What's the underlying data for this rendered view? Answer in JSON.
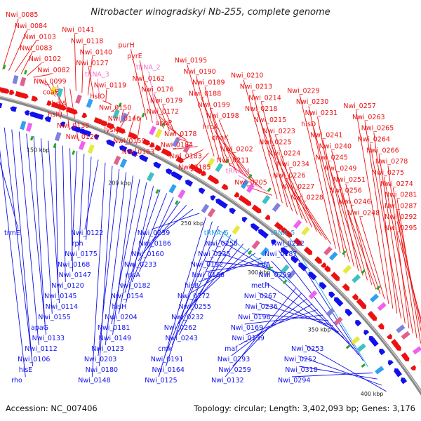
{
  "title": "Nitrobacter winogradskyi Nb-255, complete genome",
  "footer": {
    "accession": "Accession: NC_007406",
    "topology": "Topology: circular; Length: 3,402,093 bp; Genes: 3,176"
  },
  "colors": {
    "forward": "#ee1111",
    "reverse": "#1111ee",
    "trna_forward": "#ee77cc",
    "trna_reverse": "#22aadd",
    "backbone": "#888888"
  },
  "scale_ticks": [
    "150 kbp",
    "200 kbp",
    "250 kbp",
    "300 kbp",
    "350 kbp",
    "400 kbp"
  ],
  "forward_labels": [
    {
      "text": "Nwi_0085",
      "kind": "gene"
    },
    {
      "text": "Nwi_0084",
      "kind": "gene"
    },
    {
      "text": "Nwi_0103",
      "kind": "gene"
    },
    {
      "text": "Nwi_0083",
      "kind": "gene"
    },
    {
      "text": "Nwi_0102",
      "kind": "gene"
    },
    {
      "text": "Nwi_0082",
      "kind": "gene"
    },
    {
      "text": "Nwi_0099",
      "kind": "gene"
    },
    {
      "text": "coaE",
      "kind": "gene"
    },
    {
      "text": "holA",
      "kind": "gene"
    },
    {
      "text": "hslU",
      "kind": "gene"
    },
    {
      "text": "Nwi_0138",
      "kind": "gene"
    },
    {
      "text": "Nwi_0128",
      "kind": "gene"
    },
    {
      "text": "Nwi_0141",
      "kind": "gene"
    },
    {
      "text": "Nwi_0118",
      "kind": "gene"
    },
    {
      "text": "Nwi_0140",
      "kind": "gene"
    },
    {
      "text": "Nwi_0127",
      "kind": "gene"
    },
    {
      "text": "tRNA_3",
      "kind": "trna"
    },
    {
      "text": "Nwi_0119",
      "kind": "gene"
    },
    {
      "text": "hslO",
      "kind": "gene"
    },
    {
      "text": "Nwi_0150",
      "kind": "gene"
    },
    {
      "text": "Nwi_0146",
      "kind": "gene"
    },
    {
      "text": "lysK",
      "kind": "gene"
    },
    {
      "text": "Nwi_0159",
      "kind": "gene"
    },
    {
      "text": "Nwi_0163",
      "kind": "gene"
    },
    {
      "text": "purH",
      "kind": "gene"
    },
    {
      "text": "pyrE",
      "kind": "gene"
    },
    {
      "text": "tRNA_2",
      "kind": "trna"
    },
    {
      "text": "Nwi_0162",
      "kind": "gene"
    },
    {
      "text": "Nwi_0176",
      "kind": "gene"
    },
    {
      "text": "Nwi_0179",
      "kind": "gene"
    },
    {
      "text": "Nwi_0172",
      "kind": "gene"
    },
    {
      "text": "uppP",
      "kind": "gene"
    },
    {
      "text": "Nwi_0178",
      "kind": "gene"
    },
    {
      "text": "Nwi_0184",
      "kind": "gene"
    },
    {
      "text": "Nwi_0183",
      "kind": "gene"
    },
    {
      "text": "Nwi_0185",
      "kind": "gene"
    },
    {
      "text": "Nwi_0195",
      "kind": "gene"
    },
    {
      "text": "Nwi_0190",
      "kind": "gene"
    },
    {
      "text": "Nwi_0189",
      "kind": "gene"
    },
    {
      "text": "Nwi_0188",
      "kind": "gene"
    },
    {
      "text": "Nwi_0199",
      "kind": "gene"
    },
    {
      "text": "Nwi_0198",
      "kind": "gene"
    },
    {
      "text": "hrcA",
      "kind": "gene"
    },
    {
      "text": "dnaK",
      "kind": "gene"
    },
    {
      "text": "Nwi_0202",
      "kind": "gene"
    },
    {
      "text": "Nwi_0211",
      "kind": "gene"
    },
    {
      "text": "tRNA_4",
      "kind": "trna"
    },
    {
      "text": "Nwi_0205",
      "kind": "gene"
    },
    {
      "text": "Nwi_0210",
      "kind": "gene"
    },
    {
      "text": "Nwi_0213",
      "kind": "gene"
    },
    {
      "text": "Nwi_0214",
      "kind": "gene"
    },
    {
      "text": "Nwi_0218",
      "kind": "gene"
    },
    {
      "text": "Nwi_0215",
      "kind": "gene"
    },
    {
      "text": "Nwi_0223",
      "kind": "gene"
    },
    {
      "text": "Nwi_0225",
      "kind": "gene"
    },
    {
      "text": "Nwi_0224",
      "kind": "gene"
    },
    {
      "text": "Nwi_0234",
      "kind": "gene"
    },
    {
      "text": "Nwi_0226",
      "kind": "gene"
    },
    {
      "text": "Nwi_0227",
      "kind": "gene"
    },
    {
      "text": "Nwi_0228",
      "kind": "gene"
    },
    {
      "text": "Nwi_0229",
      "kind": "gene"
    },
    {
      "text": "Nwi_0230",
      "kind": "gene"
    },
    {
      "text": "Nwi_0231",
      "kind": "gene"
    },
    {
      "text": "hisD",
      "kind": "gene"
    },
    {
      "text": "Nwi_0241",
      "kind": "gene"
    },
    {
      "text": "Nwi_0240",
      "kind": "gene"
    },
    {
      "text": "Nwi_0245",
      "kind": "gene"
    },
    {
      "text": "Nwi_0249",
      "kind": "gene"
    },
    {
      "text": "Nwi_0251",
      "kind": "gene"
    },
    {
      "text": "Nwi_0256",
      "kind": "gene"
    },
    {
      "text": "Nwi_0246",
      "kind": "gene"
    },
    {
      "text": "Nwi_0248",
      "kind": "gene"
    },
    {
      "text": "Nwi_0257",
      "kind": "gene"
    },
    {
      "text": "Nwi_0263",
      "kind": "gene"
    },
    {
      "text": "Nwi_0265",
      "kind": "gene"
    },
    {
      "text": "Nwi_0264",
      "kind": "gene"
    },
    {
      "text": "Nwi_0266",
      "kind": "gene"
    },
    {
      "text": "Nwi_0278",
      "kind": "gene"
    },
    {
      "text": "Nwi_0275",
      "kind": "gene"
    },
    {
      "text": "Nwi_0274",
      "kind": "gene"
    },
    {
      "text": "Nwi_0281",
      "kind": "gene"
    },
    {
      "text": "Nwi_0287",
      "kind": "gene"
    },
    {
      "text": "Nwi_0292",
      "kind": "gene"
    },
    {
      "text": "Nwi_0295",
      "kind": "gene"
    }
  ],
  "reverse_labels": [
    {
      "text": "trmE",
      "kind": "gene"
    },
    {
      "text": "rho",
      "kind": "gene"
    },
    {
      "text": "hisE",
      "kind": "gene"
    },
    {
      "text": "Nwi_0106",
      "kind": "gene"
    },
    {
      "text": "Nwi_0112",
      "kind": "gene"
    },
    {
      "text": "Nwi_0133",
      "kind": "gene"
    },
    {
      "text": "apaG",
      "kind": "gene"
    },
    {
      "text": "Nwi_0155",
      "kind": "gene"
    },
    {
      "text": "Nwi_0114",
      "kind": "gene"
    },
    {
      "text": "Nwi_0145",
      "kind": "gene"
    },
    {
      "text": "Nwi_0120",
      "kind": "gene"
    },
    {
      "text": "Nwi_0147",
      "kind": "gene"
    },
    {
      "text": "Nwi_0168",
      "kind": "gene"
    },
    {
      "text": "Nwi_0175",
      "kind": "gene"
    },
    {
      "text": "rph",
      "kind": "gene"
    },
    {
      "text": "Nwi_0122",
      "kind": "gene"
    },
    {
      "text": "Nwi_0148",
      "kind": "gene"
    },
    {
      "text": "Nwi_0180",
      "kind": "gene"
    },
    {
      "text": "Nwi_0203",
      "kind": "gene"
    },
    {
      "text": "Nwi_0123",
      "kind": "gene"
    },
    {
      "text": "Nwi_0149",
      "kind": "gene"
    },
    {
      "text": "Nwi_0181",
      "kind": "gene"
    },
    {
      "text": "Nwi_0204",
      "kind": "gene"
    },
    {
      "text": "hisH",
      "kind": "gene"
    },
    {
      "text": "Nwi_0154",
      "kind": "gene"
    },
    {
      "text": "Nwi_0182",
      "kind": "gene"
    },
    {
      "text": "rpsA",
      "kind": "gene"
    },
    {
      "text": "Nwi_0233",
      "kind": "gene"
    },
    {
      "text": "Nwi_0160",
      "kind": "gene"
    },
    {
      "text": "Nwi_0186",
      "kind": "gene"
    },
    {
      "text": "Nwi_0239",
      "kind": "gene"
    },
    {
      "text": "Nwi_0125",
      "kind": "gene"
    },
    {
      "text": "Nwi_0164",
      "kind": "gene"
    },
    {
      "text": "Nwi_0191",
      "kind": "gene"
    },
    {
      "text": "cmk",
      "kind": "gene"
    },
    {
      "text": "Nwi_0243",
      "kind": "gene"
    },
    {
      "text": "Nwi_0262",
      "kind": "gene"
    },
    {
      "text": "Nwi_0232",
      "kind": "gene"
    },
    {
      "text": "Nwi_0255",
      "kind": "gene"
    },
    {
      "text": "Nwi_0272",
      "kind": "gene"
    },
    {
      "text": "hisB",
      "kind": "gene"
    },
    {
      "text": "Nwi_0166",
      "kind": "gene"
    },
    {
      "text": "Nwi_0192",
      "kind": "gene"
    },
    {
      "text": "Nwi_0235",
      "kind": "gene"
    },
    {
      "text": "Nwi_0258",
      "kind": "gene"
    },
    {
      "text": "tRNA_6",
      "kind": "trna"
    },
    {
      "text": "Nwi_0132",
      "kind": "gene"
    },
    {
      "text": "Nwi_0259",
      "kind": "gene"
    },
    {
      "text": "Nwi_0293",
      "kind": "gene"
    },
    {
      "text": "maf",
      "kind": "gene"
    },
    {
      "text": "Nwi_0139",
      "kind": "gene"
    },
    {
      "text": "Nwi_0169",
      "kind": "gene"
    },
    {
      "text": "Nwi_0196",
      "kind": "gene"
    },
    {
      "text": "Nwi_0236",
      "kind": "gene"
    },
    {
      "text": "Nwi_0267",
      "kind": "gene"
    },
    {
      "text": "metH",
      "kind": "gene"
    },
    {
      "text": "Nwi_0299",
      "kind": "gene"
    },
    {
      "text": "infA",
      "kind": "gene"
    },
    {
      "text": "Nwi_0187",
      "kind": "gene"
    },
    {
      "text": "Nwi_0222",
      "kind": "gene"
    },
    {
      "text": "tRNA_5",
      "kind": "trna"
    },
    {
      "text": "Nwi_0294",
      "kind": "gene"
    },
    {
      "text": "Nwi_0318",
      "kind": "gene"
    },
    {
      "text": "Nwi_0252",
      "kind": "gene"
    },
    {
      "text": "Nwi_0253",
      "kind": "gene"
    }
  ]
}
